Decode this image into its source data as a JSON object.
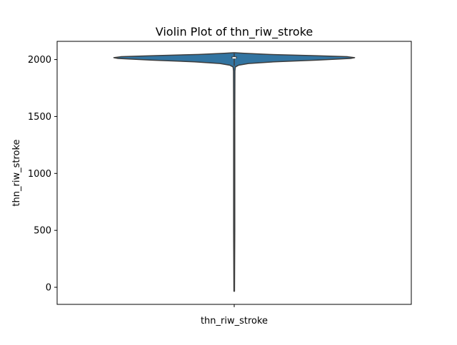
{
  "chart_data": {
    "type": "violin",
    "title": "Violin Plot of thn_riw_stroke",
    "xlabel": "",
    "ylabel": "thn_riw_stroke",
    "categories": [
      "thn_riw_stroke"
    ],
    "ylim": [
      -150,
      2160
    ],
    "y_ticks": [
      0,
      500,
      1000,
      1500,
      2000
    ],
    "grid": false,
    "fill_color": "#3274a1",
    "edge_color": "#3d3d3d",
    "violins": [
      {
        "category": "thn_riw_stroke",
        "range": [
          -35,
          2060
        ],
        "quartiles": {
          "q1": 2010,
          "median": 2015,
          "q3": 2025
        },
        "whiskers": [
          1945,
          2055
        ],
        "density_profile": [
          {
            "y": -35,
            "half_width": 0.002
          },
          {
            "y": 500,
            "half_width": 0.004
          },
          {
            "y": 1000,
            "half_width": 0.004
          },
          {
            "y": 1500,
            "half_width": 0.004
          },
          {
            "y": 1900,
            "half_width": 0.005
          },
          {
            "y": 1935,
            "half_width": 0.008
          },
          {
            "y": 1950,
            "half_width": 0.03
          },
          {
            "y": 1965,
            "half_width": 0.1
          },
          {
            "y": 1980,
            "half_width": 0.28
          },
          {
            "y": 1995,
            "half_width": 0.58
          },
          {
            "y": 2010,
            "half_width": 0.82
          },
          {
            "y": 2017,
            "half_width": 0.85
          },
          {
            "y": 2025,
            "half_width": 0.8
          },
          {
            "y": 2035,
            "half_width": 0.55
          },
          {
            "y": 2045,
            "half_width": 0.25
          },
          {
            "y": 2055,
            "half_width": 0.07
          },
          {
            "y": 2060,
            "half_width": 0.005
          }
        ]
      }
    ]
  }
}
